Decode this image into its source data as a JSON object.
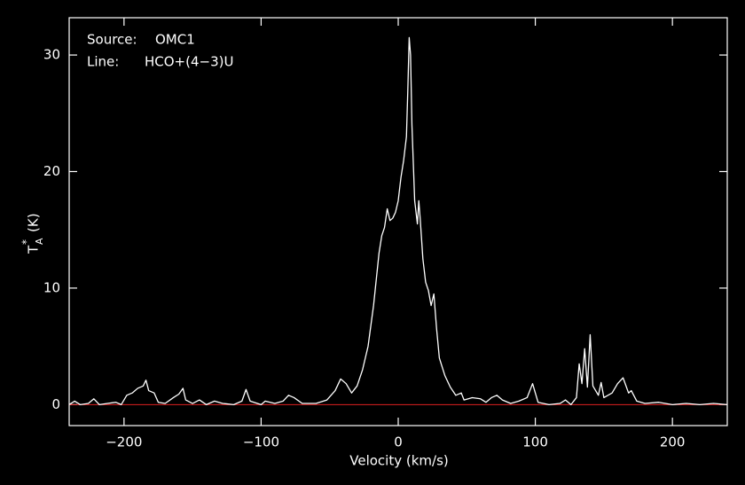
{
  "chart_data": {
    "type": "line",
    "source_label": "Source:",
    "source": "OMC1",
    "line_label": "Line:",
    "line": "HCO+(4−3)U",
    "x_label": "Velocity (km/s)",
    "y_label": {
      "main": "T",
      "sup": "*",
      "sub": "A",
      "unit": "(K)"
    },
    "xlim": [
      -240,
      240
    ],
    "ylim": [
      -1.8,
      33.2
    ],
    "xticks": [
      {
        "value": -200,
        "label": "−200"
      },
      {
        "value": -100,
        "label": "−100"
      },
      0,
      100,
      200
    ],
    "yticks": [
      0,
      10,
      20,
      30
    ],
    "reference_line": 0,
    "reference_color": "#e02020",
    "series": [
      {
        "color": "#ffffff",
        "x": [
          -240,
          -236,
          -232,
          -226,
          -222,
          -218,
          -212,
          -206,
          -202,
          -198,
          -194,
          -190,
          -186,
          -184,
          -182,
          -178,
          -175,
          -170,
          -164,
          -160,
          -157,
          -155,
          -150,
          -145,
          -140,
          -134,
          -128,
          -120,
          -114,
          -111,
          -108,
          -100,
          -97,
          -90,
          -84,
          -80,
          -76,
          -70,
          -60,
          -52,
          -46,
          -42,
          -38,
          -34,
          -30,
          -26,
          -22,
          -18,
          -14,
          -12,
          -10,
          -8,
          -6,
          -4,
          -2,
          0,
          2,
          4,
          6,
          7,
          8,
          9,
          10,
          12,
          14,
          15,
          16,
          18,
          20,
          22,
          24,
          26,
          28,
          30,
          34,
          38,
          42,
          46,
          48,
          54,
          60,
          64,
          68,
          72,
          76,
          82,
          88,
          94,
          98,
          102,
          110,
          118,
          122,
          126,
          130,
          132,
          134,
          136,
          138,
          140,
          142,
          146,
          148,
          150,
          156,
          160,
          164,
          168,
          170,
          174,
          180,
          190,
          200,
          210,
          220,
          230,
          240
        ],
        "values": [
          0.0,
          0.3,
          0.0,
          0.1,
          0.5,
          0.0,
          0.1,
          0.2,
          0.0,
          0.8,
          1.0,
          1.4,
          1.6,
          2.1,
          1.2,
          1.0,
          0.2,
          0.1,
          0.6,
          0.9,
          1.4,
          0.4,
          0.1,
          0.4,
          0.0,
          0.3,
          0.1,
          0.0,
          0.3,
          1.3,
          0.3,
          0.0,
          0.3,
          0.1,
          0.3,
          0.8,
          0.6,
          0.1,
          0.1,
          0.4,
          1.2,
          2.2,
          1.8,
          1.0,
          1.6,
          3.0,
          5.0,
          8.5,
          13.0,
          14.5,
          15.2,
          16.8,
          15.8,
          16.0,
          16.5,
          17.5,
          19.5,
          21.0,
          23.0,
          27.0,
          31.5,
          30.0,
          24.0,
          17.5,
          15.5,
          17.5,
          16.0,
          12.5,
          10.5,
          9.8,
          8.5,
          9.5,
          6.5,
          4.0,
          2.5,
          1.5,
          0.8,
          1.0,
          0.4,
          0.6,
          0.5,
          0.2,
          0.6,
          0.8,
          0.4,
          0.1,
          0.3,
          0.6,
          1.8,
          0.2,
          0.0,
          0.1,
          0.4,
          0.0,
          0.6,
          3.5,
          1.8,
          4.8,
          1.5,
          6.0,
          1.6,
          0.8,
          1.9,
          0.6,
          1.0,
          1.8,
          2.3,
          1.0,
          1.2,
          0.3,
          0.1,
          0.2,
          0.0,
          0.1,
          0.0,
          0.1,
          0.0
        ]
      }
    ]
  }
}
